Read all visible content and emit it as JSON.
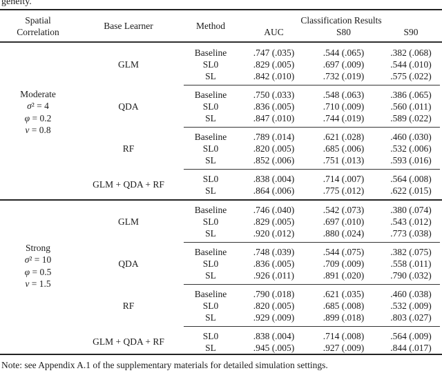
{
  "page": {
    "cutoff_text": "geneity.",
    "note": "Note: see Appendix A.1 of the supplementary materials for detailed simulation settings."
  },
  "header": {
    "col1_line1": "Spatial",
    "col1_line2": "Correlation",
    "col2": "Base Learner",
    "col3": "Method",
    "group_title": "Classification Results",
    "metrics": [
      "AUC",
      "S80",
      "S90"
    ]
  },
  "blocks": [
    {
      "label": [
        "Moderate",
        "σ² = 4",
        "φ = 0.2",
        "ν = 0.8"
      ],
      "groups": [
        {
          "learner": "GLM",
          "rows": [
            [
              "Baseline",
              ".747 (.035)",
              ".544 (.065)",
              ".382 (.068)"
            ],
            [
              "SL0",
              ".829 (.005)",
              ".697 (.009)",
              ".544 (.010)"
            ],
            [
              "SL",
              ".842 (.010)",
              ".732 (.019)",
              ".575 (.022)"
            ]
          ]
        },
        {
          "learner": "QDA",
          "rows": [
            [
              "Baseline",
              ".750 (.033)",
              ".548 (.063)",
              ".386 (.065)"
            ],
            [
              "SL0",
              ".836 (.005)",
              ".710 (.009)",
              ".560 (.011)"
            ],
            [
              "SL",
              ".847 (.010)",
              ".744 (.019)",
              ".589 (.022)"
            ]
          ]
        },
        {
          "learner": "RF",
          "rows": [
            [
              "Baseline",
              ".789 (.014)",
              ".621 (.028)",
              ".460 (.030)"
            ],
            [
              "SL0",
              ".820 (.005)",
              ".685 (.006)",
              ".532 (.006)"
            ],
            [
              "SL",
              ".852 (.006)",
              ".751 (.013)",
              ".593 (.016)"
            ]
          ]
        },
        {
          "learner": "GLM + QDA + RF",
          "rows": [
            [
              "SL0",
              ".838 (.004)",
              ".714 (.007)",
              ".564 (.008)"
            ],
            [
              "SL",
              ".864 (.006)",
              ".775 (.012)",
              ".622 (.015)"
            ]
          ]
        }
      ]
    },
    {
      "label": [
        "Strong",
        "σ² = 10",
        "φ = 0.5",
        "ν = 1.5"
      ],
      "groups": [
        {
          "learner": "GLM",
          "rows": [
            [
              "Baseline",
              ".746 (.040)",
              ".542 (.073)",
              ".380 (.074)"
            ],
            [
              "SL0",
              ".829 (.005)",
              ".697 (.010)",
              ".543 (.012)"
            ],
            [
              "SL",
              ".920 (.012)",
              ".880 (.024)",
              ".773 (.038)"
            ]
          ]
        },
        {
          "learner": "QDA",
          "rows": [
            [
              "Baseline",
              ".748 (.039)",
              ".544 (.075)",
              ".382 (.075)"
            ],
            [
              "SL0",
              ".836 (.005)",
              ".709 (.009)",
              ".558 (.011)"
            ],
            [
              "SL",
              ".926 (.011)",
              ".891 (.020)",
              ".790 (.032)"
            ]
          ]
        },
        {
          "learner": "RF",
          "rows": [
            [
              "Baseline",
              ".790 (.018)",
              ".621 (.035)",
              ".460 (.038)"
            ],
            [
              "SL0",
              ".820 (.005)",
              ".685 (.008)",
              ".532 (.009)"
            ],
            [
              "SL",
              ".929 (.009)",
              ".899 (.018)",
              ".803 (.027)"
            ]
          ]
        },
        {
          "learner": "GLM + QDA + RF",
          "rows": [
            [
              "SL0",
              ".838 (.004)",
              ".714 (.008)",
              ".564 (.009)"
            ],
            [
              "SL",
              ".945 (.005)",
              ".927 (.009)",
              ".844 (.017)"
            ]
          ]
        }
      ]
    }
  ]
}
